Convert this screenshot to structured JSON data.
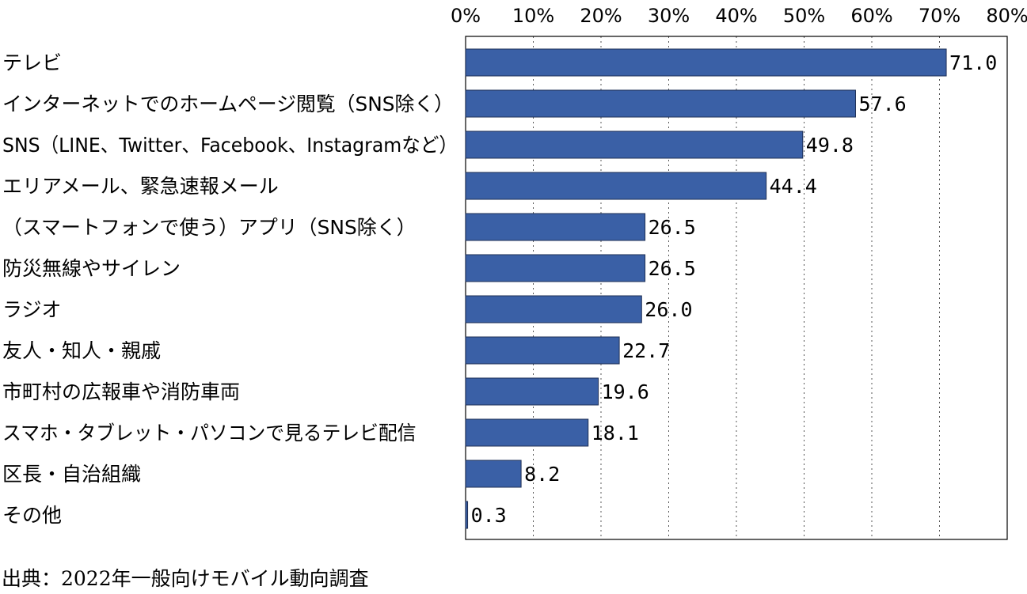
{
  "chart_data": {
    "type": "bar",
    "orientation": "horizontal",
    "categories": [
      "テレビ",
      "インターネットでのホームページ閲覧（SNS除く）",
      "SNS（LINE、Twitter、Facebook、Instagramなど）",
      "エリアメール、緊急速報メール",
      "（スマートフォンで使う）アプリ（SNS除く）",
      "防災無線やサイレン",
      "ラジオ",
      "友人・知人・親戚",
      "市町村の広報車や消防車両",
      "スマホ・タブレット・パソコンで見るテレビ配信",
      "区長・自治組織",
      "その他"
    ],
    "values": [
      71.0,
      57.6,
      49.8,
      44.4,
      26.5,
      26.5,
      26.0,
      22.7,
      19.6,
      18.1,
      8.2,
      0.3
    ],
    "value_labels": [
      "71.0",
      "57.6",
      "49.8",
      "44.4",
      "26.5",
      "26.5",
      "26.0",
      "22.7",
      "19.6",
      "18.1",
      "8.2",
      "0.3"
    ],
    "xlim": [
      0,
      80
    ],
    "xticks": [
      0,
      10,
      20,
      30,
      40,
      50,
      60,
      70,
      80
    ],
    "xtick_labels": [
      "0%",
      "10%",
      "20%",
      "30%",
      "40%",
      "50%",
      "60%",
      "70%",
      "80%"
    ],
    "x_axis_position": "top",
    "grid": "vertical dotted",
    "bar_color": "#3a60a6",
    "title": "",
    "xlabel": "",
    "ylabel": ""
  },
  "source": "出典：2022年一般向けモバイル動向調査"
}
